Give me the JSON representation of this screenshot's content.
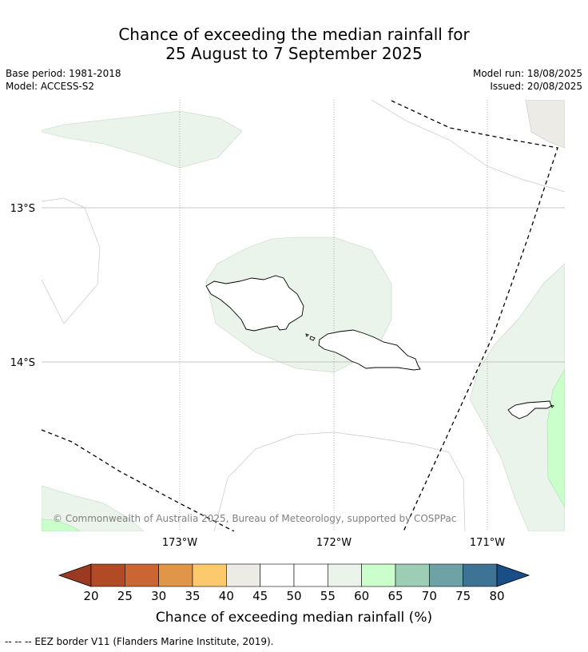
{
  "title": {
    "line1": "Chance of exceeding the median rainfall for",
    "line2": "25 August to 7 September 2025"
  },
  "meta": {
    "base_period": "Base period: 1981-2018",
    "model": "Model: ACCESS-S2",
    "model_run": "Model run: 18/08/2025",
    "issued": "Issued: 20/08/2025"
  },
  "map": {
    "lat_ticks": [
      "13°S",
      "14°S"
    ],
    "lon_ticks": [
      "173°W",
      "172°W",
      "171°W"
    ],
    "copyright": "© Commonwealth of Australia 2025, Bureau of Meteorology, supported by COSPPac"
  },
  "colorbar": {
    "title": "Chance of exceeding median rainfall (%)",
    "low_arrow_color": "#9a3a22",
    "high_arrow_color": "#1a4e88",
    "bins": [
      {
        "label": "20",
        "color": "#b24a26"
      },
      {
        "label": "25",
        "color": "#cb6634"
      },
      {
        "label": "30",
        "color": "#e09548"
      },
      {
        "label": "35",
        "color": "#fcca6c"
      },
      {
        "label": "40",
        "color": "#edebe6"
      },
      {
        "label": "45",
        "color": "#ffffff"
      },
      {
        "label": "50",
        "color": "#ffffff"
      },
      {
        "label": "55",
        "color": "#eaf4ea"
      },
      {
        "label": "60",
        "color": "#caffcb"
      },
      {
        "label": "65",
        "color": "#9ecdb6"
      },
      {
        "label": "70",
        "color": "#6da3a6"
      },
      {
        "label": "75",
        "color": "#3e7395"
      }
    ],
    "last_label": "80"
  },
  "footnote": "--  --  -- EEZ border V11 (Flanders Marine Institute, 2019)."
}
